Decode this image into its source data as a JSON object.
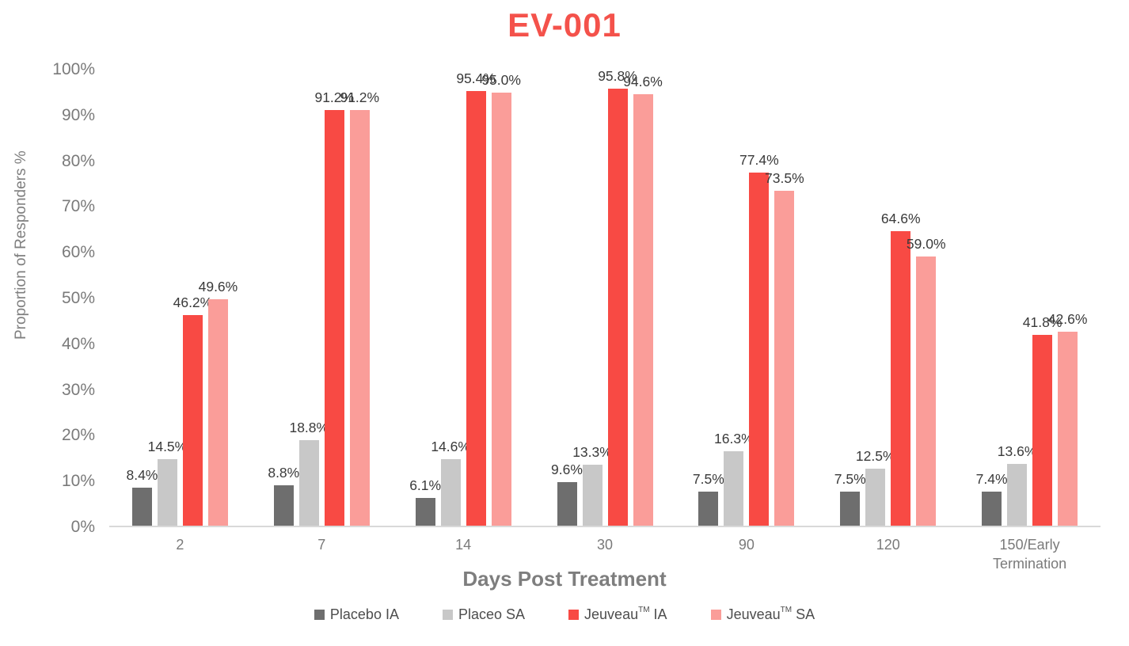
{
  "chart_data": {
    "type": "bar",
    "title": "EV-001",
    "xlabel": "Days Post Treatment",
    "ylabel": "Proportion of Responders %",
    "ylim": [
      0,
      100
    ],
    "ytick_step": 10,
    "ytick_suffix": "%",
    "grid": false,
    "legend_position": "bottom",
    "categories": [
      "2",
      "7",
      "14",
      "30",
      "90",
      "120",
      "150/Early Termination"
    ],
    "series": [
      {
        "name": "Placebo IA",
        "color": "#6E6E6E",
        "values": [
          8.4,
          8.8,
          6.1,
          9.6,
          7.5,
          7.5,
          7.4
        ]
      },
      {
        "name": "Placeo SA",
        "color": "#C8C8C8",
        "values": [
          14.5,
          18.8,
          14.6,
          13.3,
          16.3,
          12.5,
          13.6
        ]
      },
      {
        "name": "Jeuveau™ IA",
        "color": "#F84A44",
        "values": [
          46.2,
          91.2,
          95.4,
          95.8,
          77.4,
          64.6,
          41.8
        ]
      },
      {
        "name": "Jeuveau™ SA",
        "color": "#FA9D99",
        "values": [
          49.6,
          91.2,
          95.0,
          94.6,
          73.5,
          59.0,
          42.6
        ]
      }
    ],
    "value_label_format": "one_decimal_percent"
  },
  "colors": {
    "title": "#F4524B",
    "axis_text": "#7A7A7A",
    "value_label_text": "#3A3A3A",
    "axis_line": "#D9D9D9",
    "background": "#FFFFFF"
  }
}
